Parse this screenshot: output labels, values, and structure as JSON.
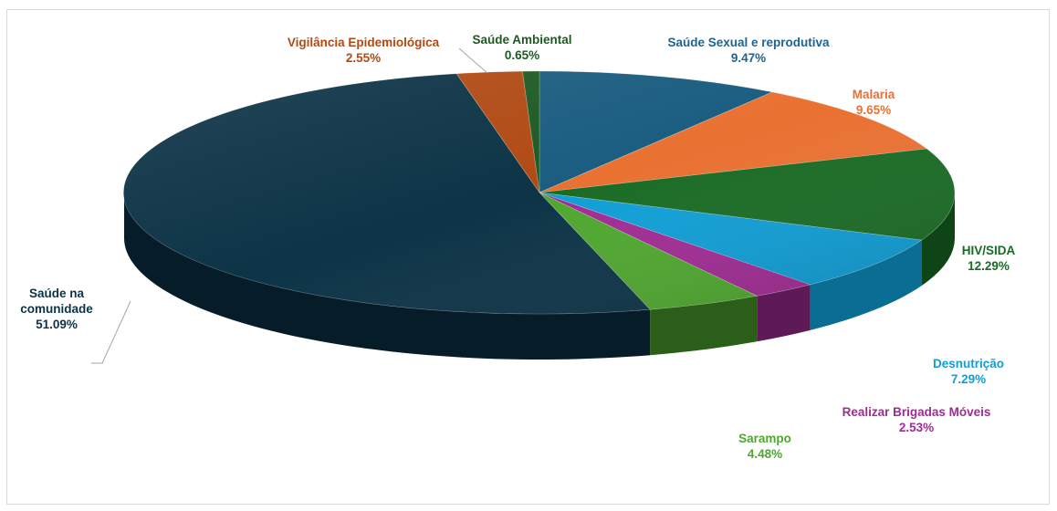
{
  "chart_data": {
    "type": "pie",
    "title": "",
    "slices": [
      {
        "name": "Saúde Sexual e reprodutiva",
        "value": 9.47,
        "value_label": "9.47%",
        "color": "#1a5d80",
        "side_color": "#0f3b52"
      },
      {
        "name": "Malaria",
        "value": 9.65,
        "value_label": "9.65%",
        "color": "#e97132",
        "side_color": "#a54d1d"
      },
      {
        "name": "HIV/SIDA",
        "value": 12.29,
        "value_label": "12.29%",
        "color": "#196b24",
        "side_color": "#0f4516"
      },
      {
        "name": "Desnutrição",
        "value": 7.29,
        "value_label": "7.29%",
        "color": "#0f9ed5",
        "side_color": "#0a6d94"
      },
      {
        "name": "Realizar Brigadas Móveis",
        "value": 2.53,
        "value_label": "2.53%",
        "color": "#a02b93",
        "side_color": "#5e1a56"
      },
      {
        "name": "Sarampo",
        "value": 4.48,
        "value_label": "4.48%",
        "color": "#4ea72e",
        "side_color": "#2b5e18"
      },
      {
        "name": "Saúde na comunidade",
        "value": 51.09,
        "value_label": "51.09%",
        "color": "#0c3346",
        "side_color": "#061c28"
      },
      {
        "name": "Vigilância Epidemiológica",
        "value": 2.55,
        "value_label": "2.55%",
        "color": "#b04a14",
        "side_color": "#7a320b"
      },
      {
        "name": "Saúde Ambiental",
        "value": 0.65,
        "value_label": "0.65%",
        "color": "#1d5a24",
        "side_color": "#10381a"
      }
    ],
    "legend": "none",
    "style": "3d-pie"
  }
}
